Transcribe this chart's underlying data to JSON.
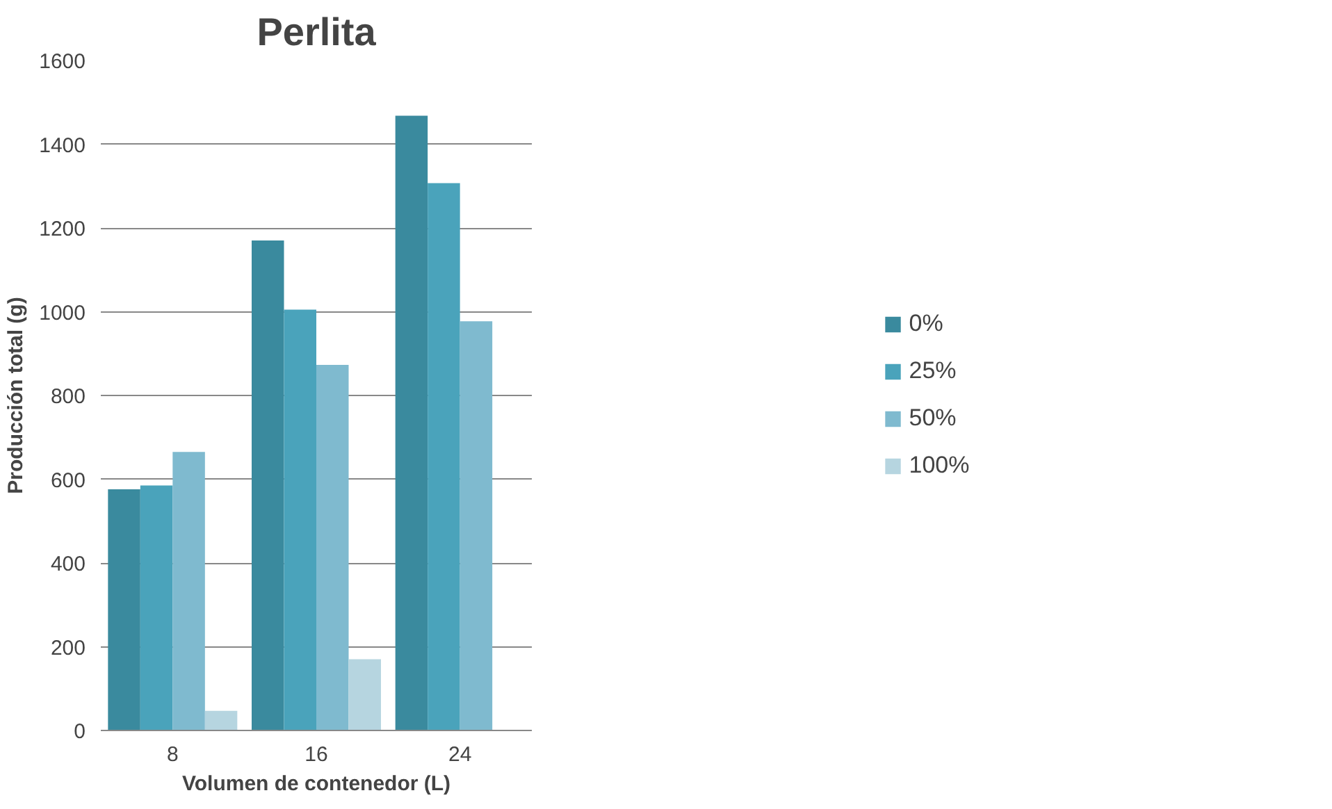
{
  "chart_data": {
    "type": "bar",
    "title": "Perlita",
    "xlabel": "Volumen de contenedor (L)",
    "ylabel": "Producción total (g)",
    "categories": [
      "8",
      "16",
      "24"
    ],
    "series": [
      {
        "name": "0%",
        "color": "#3a8a9e",
        "values": [
          576,
          1170,
          1468
        ]
      },
      {
        "name": "25%",
        "color": "#4aa3bb",
        "values": [
          585,
          1005,
          1307
        ]
      },
      {
        "name": "50%",
        "color": "#7fbacf",
        "values": [
          665,
          873,
          977
        ]
      },
      {
        "name": "100%",
        "color": "#b6d5e0",
        "values": [
          47,
          170,
          null
        ]
      }
    ],
    "ylim": [
      0,
      1600
    ],
    "yticks": [
      0,
      200,
      400,
      600,
      800,
      1000,
      1200,
      1400,
      1600
    ],
    "grid": "y",
    "legend": "right"
  }
}
